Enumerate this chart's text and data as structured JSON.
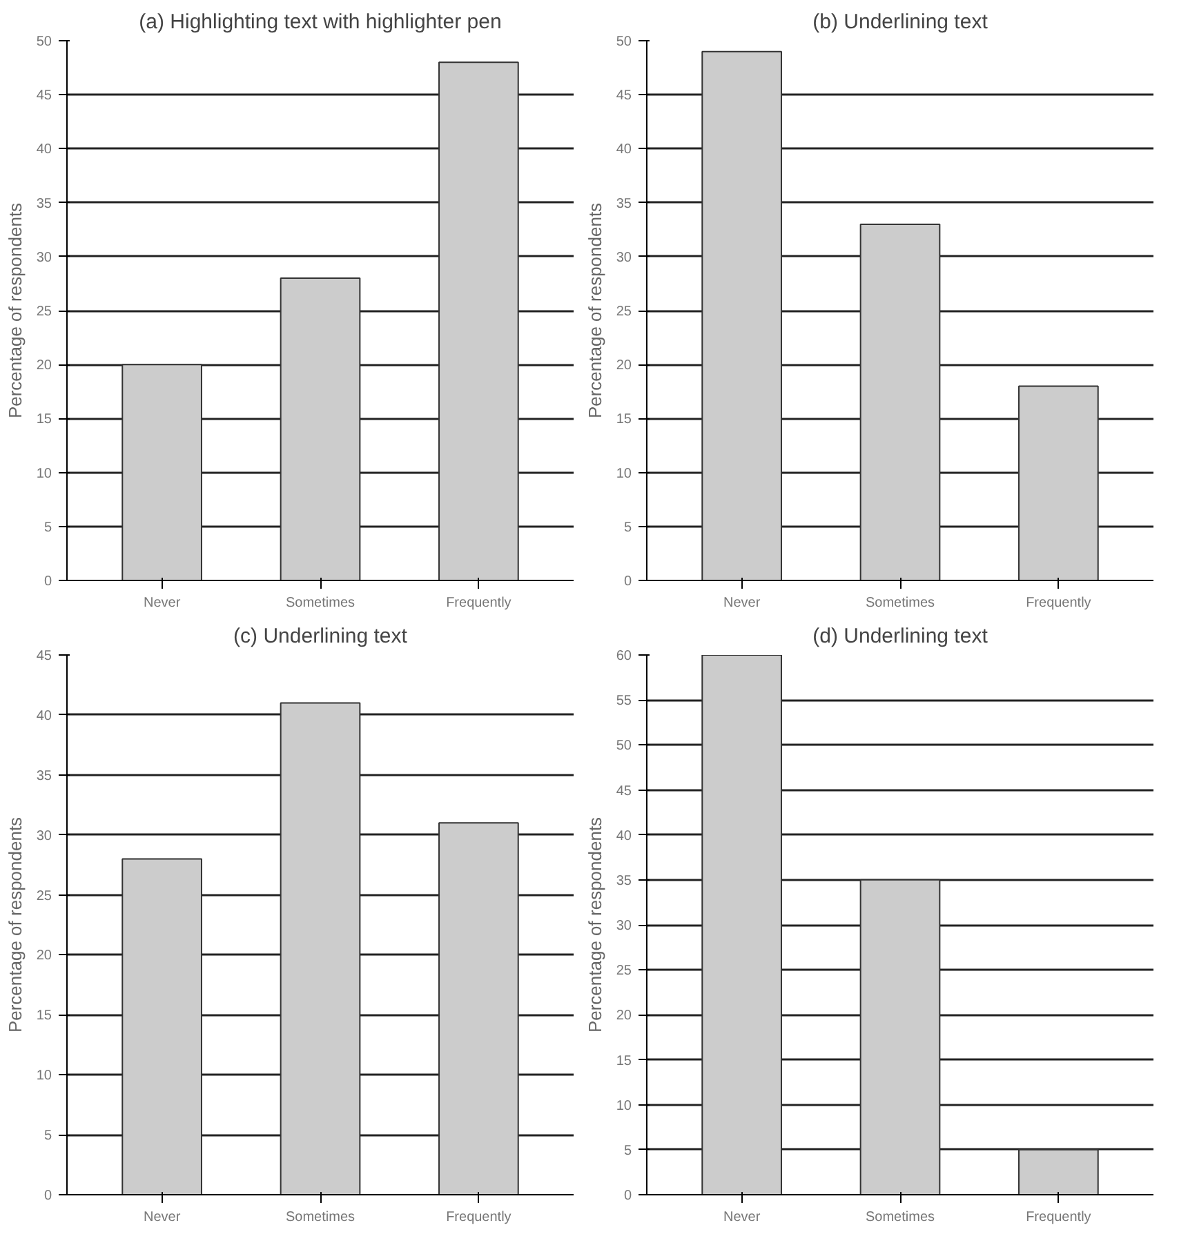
{
  "chart_data": [
    {
      "type": "bar",
      "title": "(a) Highlighting text with highlighter pen",
      "ylabel": "Percentage of respondents",
      "categories": [
        "Never",
        "Sometimes",
        "Frequently"
      ],
      "values": [
        20,
        28,
        48
      ],
      "color": "#cccccc",
      "ylim": [
        0,
        50
      ],
      "yticks": [
        0,
        5,
        10,
        15,
        20,
        25,
        30,
        35,
        40,
        45,
        50
      ],
      "grid": "y"
    },
    {
      "type": "bar",
      "title": "(b) Underlining text",
      "ylabel": "Percentage of respondents",
      "categories": [
        "Never",
        "Sometimes",
        "Frequently"
      ],
      "values": [
        49,
        33,
        18
      ],
      "color": "#cccccc",
      "ylim": [
        0,
        50
      ],
      "yticks": [
        0,
        5,
        10,
        15,
        20,
        25,
        30,
        35,
        40,
        45,
        50
      ],
      "grid": "y"
    },
    {
      "type": "bar",
      "title": "(c) Underlining text",
      "ylabel": "Percentage of respondents",
      "categories": [
        "Never",
        "Sometimes",
        "Frequently"
      ],
      "values": [
        28,
        41,
        31
      ],
      "color": "#cccccc",
      "ylim": [
        0,
        45
      ],
      "yticks": [
        0,
        5,
        10,
        15,
        20,
        25,
        30,
        35,
        40,
        45
      ],
      "grid": "y"
    },
    {
      "type": "bar",
      "title": "(d) Underlining text",
      "ylabel": "Percentage of respondents",
      "categories": [
        "Never",
        "Sometimes",
        "Frequently"
      ],
      "values": [
        60,
        35,
        5
      ],
      "color": "#cccccc",
      "ylim": [
        0,
        60
      ],
      "yticks": [
        0,
        5,
        10,
        15,
        20,
        25,
        30,
        35,
        40,
        45,
        50,
        55,
        60
      ],
      "grid": "y"
    }
  ]
}
